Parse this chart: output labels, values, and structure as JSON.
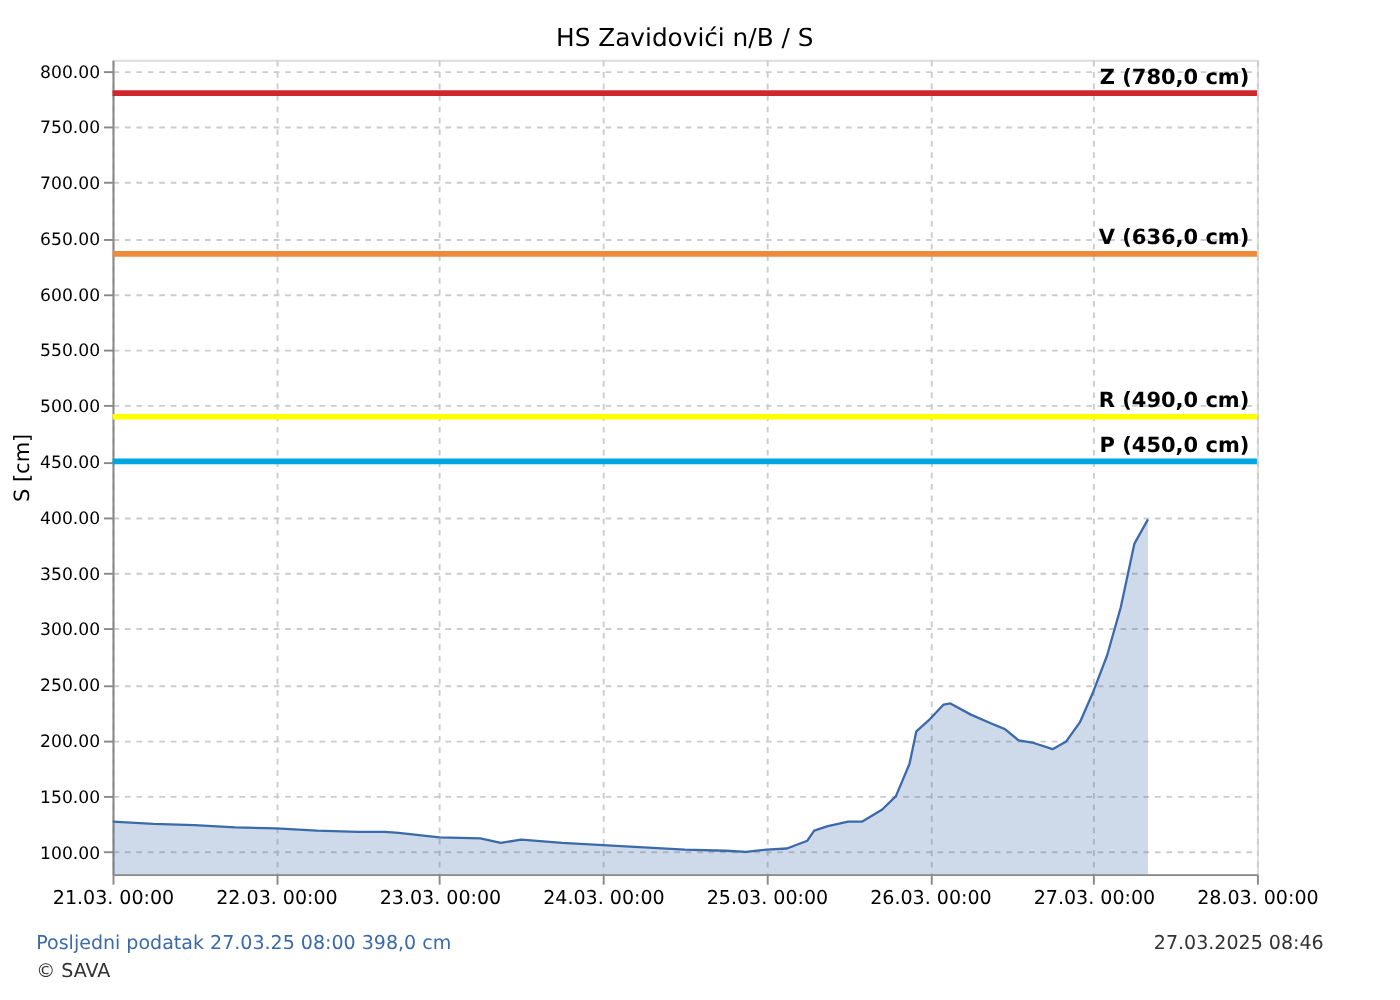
{
  "chart_data": {
    "type": "area",
    "title": "HS Zavidovići n/B / S",
    "ylabel": "S [cm]",
    "x": [
      "2025-03-21T00:00",
      "2025-03-21T06:00",
      "2025-03-21T12:00",
      "2025-03-21T18:00",
      "2025-03-22T00:00",
      "2025-03-22T06:00",
      "2025-03-22T12:00",
      "2025-03-22T16:00",
      "2025-03-22T18:00",
      "2025-03-23T00:00",
      "2025-03-23T06:00",
      "2025-03-23T09:00",
      "2025-03-23T12:00",
      "2025-03-23T18:00",
      "2025-03-24T00:00",
      "2025-03-24T06:00",
      "2025-03-24T12:00",
      "2025-03-24T18:00",
      "2025-03-24T21:00",
      "2025-03-25T00:00",
      "2025-03-25T03:00",
      "2025-03-25T06:00",
      "2025-03-25T07:00",
      "2025-03-25T09:00",
      "2025-03-25T12:00",
      "2025-03-25T14:00",
      "2025-03-25T17:00",
      "2025-03-25T19:00",
      "2025-03-25T21:00",
      "2025-03-25T22:00",
      "2025-03-26T00:00",
      "2025-03-26T02:00",
      "2025-03-26T03:00",
      "2025-03-26T06:00",
      "2025-03-26T09:00",
      "2025-03-26T11:00",
      "2025-03-26T13:00",
      "2025-03-26T15:00",
      "2025-03-26T18:00",
      "2025-03-26T20:00",
      "2025-03-26T22:00",
      "2025-03-27T00:00",
      "2025-03-27T02:00",
      "2025-03-27T04:00",
      "2025-03-27T06:00",
      "2025-03-27T08:00"
    ],
    "series": [
      {
        "color": "#3b6aaa",
        "values": [
          127,
          125,
          124,
          122,
          121,
          119,
          118,
          118,
          117,
          113,
          112,
          108,
          111,
          108,
          106,
          104,
          102,
          101,
          100,
          102,
          103,
          110,
          119,
          123,
          127,
          127,
          138,
          150,
          179,
          208,
          219,
          232,
          233,
          223,
          215,
          210,
          200,
          198,
          192,
          199,
          216,
          244,
          276,
          319,
          376,
          398
        ]
      }
    ],
    "xlim": [
      "2025-03-21T00:00",
      "2025-03-28T00:00"
    ],
    "xticks": [
      {
        "value": "2025-03-21T00:00",
        "label": "21.03. 00:00"
      },
      {
        "value": "2025-03-22T00:00",
        "label": "22.03. 00:00"
      },
      {
        "value": "2025-03-23T00:00",
        "label": "23.03. 00:00"
      },
      {
        "value": "2025-03-24T00:00",
        "label": "24.03. 00:00"
      },
      {
        "value": "2025-03-25T00:00",
        "label": "25.03. 00:00"
      },
      {
        "value": "2025-03-26T00:00",
        "label": "26.03. 00:00"
      },
      {
        "value": "2025-03-27T00:00",
        "label": "27.03. 00:00"
      },
      {
        "value": "2025-03-28T00:00",
        "label": "28.03. 00:00"
      }
    ],
    "ylim": [
      80,
      810
    ],
    "yticks": [
      {
        "value": 100,
        "label": "100.00"
      },
      {
        "value": 150,
        "label": "150.00"
      },
      {
        "value": 200,
        "label": "200.00"
      },
      {
        "value": 250,
        "label": "250.00"
      },
      {
        "value": 300,
        "label": "300.00"
      },
      {
        "value": 350,
        "label": "350.00"
      },
      {
        "value": 400,
        "label": "400.00"
      },
      {
        "value": 450,
        "label": "450.00"
      },
      {
        "value": 500,
        "label": "500.00"
      },
      {
        "value": 550,
        "label": "550.00"
      },
      {
        "value": 600,
        "label": "600.00"
      },
      {
        "value": 650,
        "label": "650.00"
      },
      {
        "value": 700,
        "label": "700.00"
      },
      {
        "value": 750,
        "label": "750.00"
      },
      {
        "value": 800,
        "label": "800.00"
      }
    ],
    "ref_lines": [
      {
        "axis": "y",
        "value": 780,
        "label": "Z (780,0 cm)",
        "color": "#d0262e"
      },
      {
        "axis": "y",
        "value": 636,
        "label": "V (636,0 cm)",
        "color": "#ee8a3c"
      },
      {
        "axis": "y",
        "value": 490,
        "label": "R (490,0 cm)",
        "color": "#ffff00"
      },
      {
        "axis": "y",
        "value": 450,
        "label": "P (450,0 cm)",
        "color": "#00a6e0"
      }
    ],
    "grid": true,
    "annotations": [
      "Posljedni podatak 27.03.25 08:00  398,0 cm",
      "27.03.2025 08:46",
      "© SAVA"
    ]
  }
}
